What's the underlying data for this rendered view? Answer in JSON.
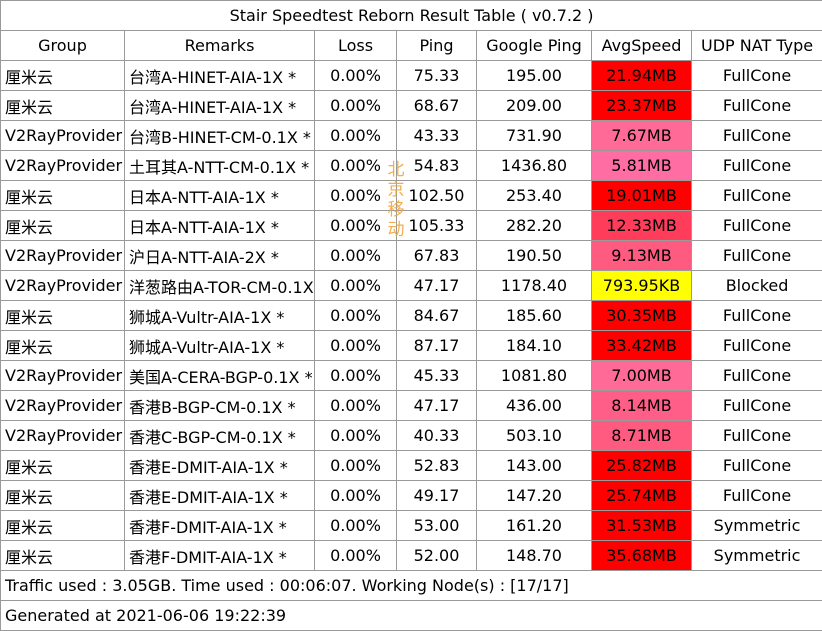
{
  "title": "Stair Speedtest Reborn Result Table ( v0.7.2 )",
  "headers": [
    "Group",
    "Remarks",
    "Loss",
    "Ping",
    "Google Ping",
    "AvgSpeed",
    "UDP NAT Type"
  ],
  "rows": [
    {
      "group": "厘米云",
      "remarks": "台湾A-HINET-AIA-1X *",
      "loss": "0.00%",
      "ping": "75.33",
      "gping": "195.00",
      "speed": "21.94MB",
      "nat": "FullCone",
      "color": "#ff0000"
    },
    {
      "group": "厘米云",
      "remarks": "台湾A-HINET-AIA-1X *",
      "loss": "0.00%",
      "ping": "68.67",
      "gping": "209.00",
      "speed": "23.37MB",
      "nat": "FullCone",
      "color": "#ff0000"
    },
    {
      "group": "V2RayProvider",
      "remarks": "台湾B-HINET-CM-0.1X *",
      "loss": "0.00%",
      "ping": "43.33",
      "gping": "731.90",
      "speed": "7.67MB",
      "nat": "FullCone",
      "color": "#ff6a96"
    },
    {
      "group": "V2RayProvider",
      "remarks": "土耳其A-NTT-CM-0.1X *",
      "loss": "0.00%",
      "ping": "54.83",
      "gping": "1436.80",
      "speed": "5.81MB",
      "nat": "FullCone",
      "color": "#ff6da2"
    },
    {
      "group": "厘米云",
      "remarks": "日本A-NTT-AIA-1X *",
      "loss": "0.00%",
      "ping": "102.50",
      "gping": "253.40",
      "speed": "19.01MB",
      "nat": "FullCone",
      "color": "#ff0000"
    },
    {
      "group": "厘米云",
      "remarks": "日本A-NTT-AIA-1X *",
      "loss": "0.00%",
      "ping": "105.33",
      "gping": "282.20",
      "speed": "12.33MB",
      "nat": "FullCone",
      "color": "#ff3c5a"
    },
    {
      "group": "V2RayProvider",
      "remarks": "沪日A-NTT-AIA-2X *",
      "loss": "0.00%",
      "ping": "67.83",
      "gping": "190.50",
      "speed": "9.13MB",
      "nat": "FullCone",
      "color": "#ff5a80"
    },
    {
      "group": "V2RayProvider",
      "remarks": "洋葱路由A-TOR-CM-0.1X",
      "loss": "0.00%",
      "ping": "47.17",
      "gping": "1178.40",
      "speed": "793.95KB",
      "nat": "Blocked",
      "color": "#ffff00"
    },
    {
      "group": "厘米云",
      "remarks": "狮城A-Vultr-AIA-1X *",
      "loss": "0.00%",
      "ping": "84.67",
      "gping": "185.60",
      "speed": "30.35MB",
      "nat": "FullCone",
      "color": "#ff0000"
    },
    {
      "group": "厘米云",
      "remarks": "狮城A-Vultr-AIA-1X *",
      "loss": "0.00%",
      "ping": "87.17",
      "gping": "184.10",
      "speed": "33.42MB",
      "nat": "FullCone",
      "color": "#ff0000"
    },
    {
      "group": "V2RayProvider",
      "remarks": "美国A-CERA-BGP-0.1X *",
      "loss": "0.00%",
      "ping": "45.33",
      "gping": "1081.80",
      "speed": "7.00MB",
      "nat": "FullCone",
      "color": "#ff6a96"
    },
    {
      "group": "V2RayProvider",
      "remarks": "香港B-BGP-CM-0.1X *",
      "loss": "0.00%",
      "ping": "47.17",
      "gping": "436.00",
      "speed": "8.14MB",
      "nat": "FullCone",
      "color": "#ff5e88"
    },
    {
      "group": "V2RayProvider",
      "remarks": "香港C-BGP-CM-0.1X *",
      "loss": "0.00%",
      "ping": "40.33",
      "gping": "503.10",
      "speed": "8.71MB",
      "nat": "FullCone",
      "color": "#ff5a80"
    },
    {
      "group": "厘米云",
      "remarks": "香港E-DMIT-AIA-1X *",
      "loss": "0.00%",
      "ping": "52.83",
      "gping": "143.00",
      "speed": "25.82MB",
      "nat": "FullCone",
      "color": "#ff0000"
    },
    {
      "group": "厘米云",
      "remarks": "香港E-DMIT-AIA-1X *",
      "loss": "0.00%",
      "ping": "49.17",
      "gping": "147.20",
      "speed": "25.74MB",
      "nat": "FullCone",
      "color": "#ff0000"
    },
    {
      "group": "厘米云",
      "remarks": "香港F-DMIT-AIA-1X *",
      "loss": "0.00%",
      "ping": "53.00",
      "gping": "161.20",
      "speed": "31.53MB",
      "nat": "Symmetric",
      "color": "#ff0000"
    },
    {
      "group": "厘米云",
      "remarks": "香港F-DMIT-AIA-1X *",
      "loss": "0.00%",
      "ping": "52.00",
      "gping": "148.70",
      "speed": "35.68MB",
      "nat": "Symmetric",
      "color": "#ff0000"
    }
  ],
  "traffic_line": "Traffic used : 3.05GB. Time used : 00:06:07. Working Node(s) : [17/17]",
  "generated_line": "Generated at 2021-06-06 19:22:39",
  "watermark": [
    "北",
    "京",
    "移",
    "动"
  ]
}
